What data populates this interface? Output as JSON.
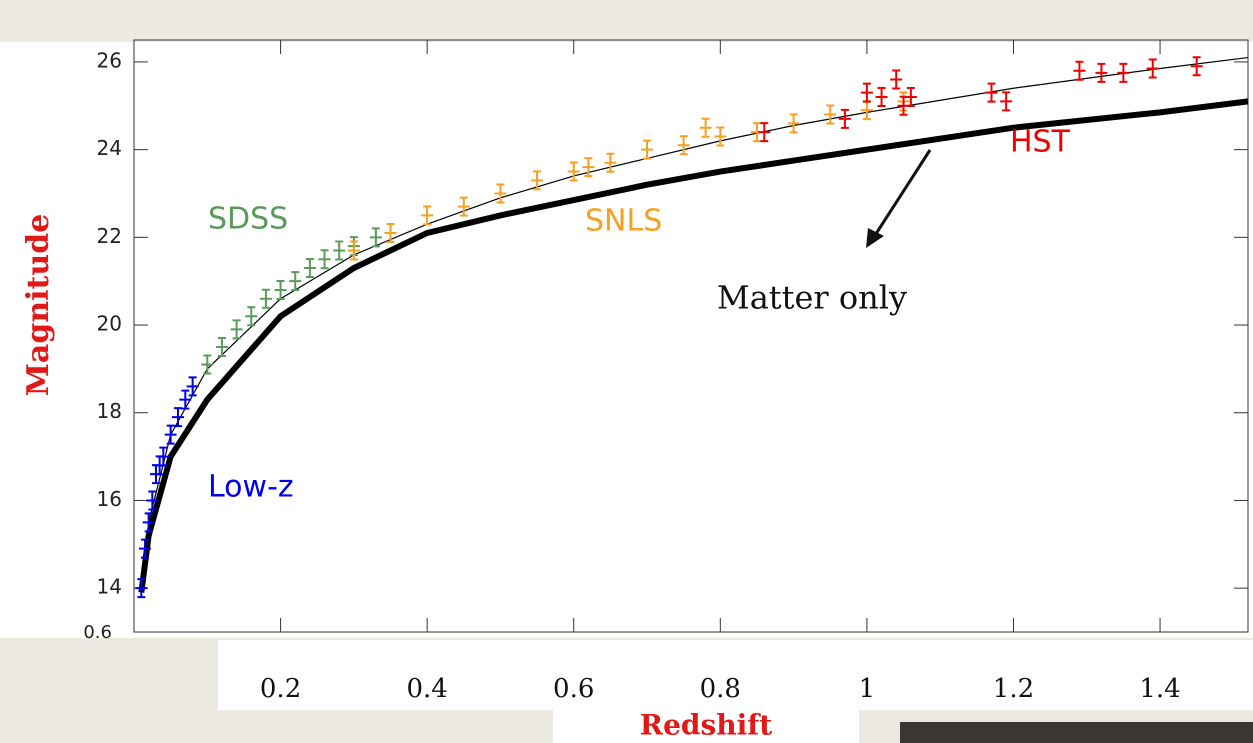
{
  "chart_data": {
    "type": "scatter",
    "ylabel": "Magnitude",
    "xlabel": "Redshift",
    "xlim": [
      0,
      1.52
    ],
    "ylim": [
      13,
      26.5
    ],
    "xticks": [
      0.2,
      0.4,
      0.6,
      0.8,
      1,
      1.2,
      1.4
    ],
    "yticks": [
      14,
      16,
      18,
      20,
      22,
      24,
      26
    ],
    "residual_tick": "0.6",
    "annotation": "Matter only",
    "series": [
      {
        "name": "Low-z",
        "color": "#0000ee",
        "x": [
          0.01,
          0.015,
          0.02,
          0.025,
          0.03,
          0.035,
          0.04,
          0.05,
          0.06,
          0.07,
          0.08
        ],
        "values": [
          14.0,
          14.9,
          15.5,
          16.0,
          16.6,
          16.8,
          17.0,
          17.5,
          17.9,
          18.3,
          18.6
        ]
      },
      {
        "name": "SDSS",
        "color": "#5a9a5a",
        "x": [
          0.1,
          0.12,
          0.14,
          0.16,
          0.18,
          0.2,
          0.22,
          0.24,
          0.26,
          0.28,
          0.3,
          0.33
        ],
        "values": [
          19.1,
          19.5,
          19.9,
          20.2,
          20.6,
          20.8,
          21.0,
          21.3,
          21.5,
          21.7,
          21.8,
          22.0
        ]
      },
      {
        "name": "SNLS",
        "color": "#f5a020",
        "x": [
          0.3,
          0.35,
          0.4,
          0.45,
          0.5,
          0.55,
          0.6,
          0.62,
          0.65,
          0.7,
          0.75,
          0.78,
          0.8,
          0.85,
          0.9,
          0.95,
          1.0,
          1.05
        ],
        "values": [
          21.7,
          22.1,
          22.5,
          22.7,
          23.0,
          23.3,
          23.5,
          23.6,
          23.7,
          24.0,
          24.1,
          24.5,
          24.3,
          24.4,
          24.6,
          24.8,
          24.9,
          25.1
        ]
      },
      {
        "name": "HST",
        "color": "#ee0000",
        "x": [
          0.86,
          0.97,
          1.0,
          1.02,
          1.04,
          1.05,
          1.06,
          1.17,
          1.19,
          1.29,
          1.32,
          1.35,
          1.39,
          1.45
        ],
        "values": [
          24.4,
          24.7,
          25.3,
          25.2,
          25.6,
          25.0,
          25.2,
          25.3,
          25.1,
          25.8,
          25.75,
          25.75,
          25.85,
          25.9
        ]
      }
    ],
    "curves": [
      {
        "color": "#000000",
        "x": [
          0.01,
          0.02,
          0.05,
          0.1,
          0.2,
          0.3,
          0.4,
          0.5,
          0.6,
          0.7,
          0.8,
          0.9,
          1.0,
          1.2,
          1.4,
          1.52
        ],
        "values": [
          14.0,
          15.5,
          17.5,
          19.0,
          20.6,
          21.6,
          22.3,
          22.9,
          23.4,
          23.8,
          24.2,
          24.55,
          24.85,
          25.4,
          25.85,
          26.1
        ]
      },
      {
        "color": "#000000",
        "x": [
          0.01,
          0.02,
          0.05,
          0.1,
          0.2,
          0.3,
          0.4,
          0.5,
          0.6,
          0.7,
          0.8,
          0.9,
          1.0,
          1.2,
          1.4,
          1.52
        ],
        "values": [
          13.9,
          15.2,
          17.0,
          18.3,
          20.2,
          21.3,
          22.1,
          22.5,
          22.85,
          23.2,
          23.5,
          23.75,
          24.0,
          24.5,
          24.85,
          25.1
        ]
      }
    ]
  }
}
